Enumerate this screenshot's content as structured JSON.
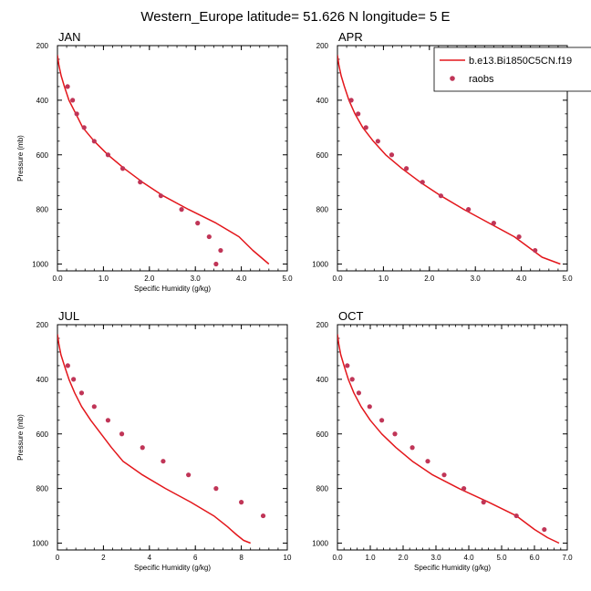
{
  "figure": {
    "title": "Western_Europe  latitude= 51.626 N longitude= 5 E"
  },
  "legend": {
    "location": "top-right",
    "model_label": "b.e13.Bi1850C5CN.f19",
    "obs_label": "raobs"
  },
  "colors": {
    "model_line": "#e3161b",
    "obs_marker": "#c03557",
    "axis": "#000000"
  },
  "chart_data": [
    {
      "type": "line",
      "title": "JAN",
      "xlabel": "Specific Humidity (g/kg)",
      "ylabel": "Pressure (mb)",
      "xlim": [
        0,
        5
      ],
      "ylim": [
        200,
        1025
      ],
      "y_inverted": true,
      "xtick_values": [
        0,
        1,
        2,
        3,
        4,
        5
      ],
      "xtick_labels": [
        "0.0",
        "1.0",
        "2.0",
        "3.0",
        "4.0",
        "5.0"
      ],
      "ytick_values": [
        200,
        400,
        600,
        800,
        1000
      ],
      "ytick_labels": [
        "200",
        "400",
        "600",
        "800",
        "1000"
      ],
      "series": [
        {
          "name": "b.e13.Bi1850C5CN.f19",
          "kind": "line",
          "x": [
            0.0,
            0.03,
            0.08,
            0.15,
            0.25,
            0.4,
            0.55,
            0.8,
            1.1,
            1.45,
            1.85,
            2.3,
            2.85,
            3.45,
            3.95,
            4.25,
            4.6
          ],
          "y": [
            235,
            270,
            310,
            350,
            400,
            450,
            500,
            550,
            600,
            650,
            700,
            750,
            800,
            850,
            900,
            950,
            1000
          ]
        },
        {
          "name": "raobs",
          "kind": "scatter",
          "x": [
            0.22,
            0.33,
            0.42,
            0.58,
            0.8,
            1.1,
            1.42,
            1.8,
            2.25,
            2.7,
            3.05,
            3.3,
            3.55,
            3.45
          ],
          "y": [
            350,
            400,
            450,
            500,
            550,
            600,
            650,
            700,
            750,
            800,
            850,
            900,
            950,
            1000
          ]
        }
      ]
    },
    {
      "type": "line",
      "title": "APR",
      "xlabel": "",
      "ylabel": "",
      "xlim": [
        0,
        5
      ],
      "ylim": [
        200,
        1025
      ],
      "y_inverted": true,
      "xtick_values": [
        0,
        1,
        2,
        3,
        4,
        5
      ],
      "xtick_labels": [
        "0.0",
        "1.0",
        "2.0",
        "3.0",
        "4.0",
        "5.0"
      ],
      "ytick_values": [
        200,
        400,
        600,
        800,
        1000
      ],
      "ytick_labels": [
        "200",
        "400",
        "600",
        "800",
        "1000"
      ],
      "series": [
        {
          "name": "b.e13.Bi1850C5CN.f19",
          "kind": "line",
          "x": [
            0.0,
            0.03,
            0.08,
            0.15,
            0.25,
            0.38,
            0.55,
            0.78,
            1.05,
            1.4,
            1.8,
            2.25,
            2.75,
            3.3,
            3.85,
            4.25,
            4.45,
            4.85
          ],
          "y": [
            235,
            270,
            310,
            350,
            400,
            450,
            500,
            550,
            600,
            650,
            700,
            750,
            800,
            850,
            900,
            950,
            975,
            1000
          ]
        },
        {
          "name": "raobs",
          "kind": "scatter",
          "x": [
            0.3,
            0.45,
            0.62,
            0.88,
            1.18,
            1.5,
            1.85,
            2.25,
            2.85,
            3.4,
            3.95,
            4.3
          ],
          "y": [
            400,
            450,
            500,
            550,
            600,
            650,
            700,
            750,
            800,
            850,
            900,
            950
          ]
        }
      ]
    },
    {
      "type": "line",
      "title": "JUL",
      "xlabel": "Specific Humidity (g/kg)",
      "ylabel": "Pressure (mb)",
      "xlim": [
        0,
        10
      ],
      "ylim": [
        200,
        1025
      ],
      "y_inverted": true,
      "xtick_values": [
        0,
        2,
        4,
        6,
        8,
        10
      ],
      "xtick_labels": [
        "0",
        "2",
        "4",
        "6",
        "8",
        "10"
      ],
      "ytick_values": [
        200,
        400,
        600,
        800,
        1000
      ],
      "ytick_labels": [
        "200",
        "400",
        "600",
        "800",
        "1000"
      ],
      "series": [
        {
          "name": "b.e13.Bi1850C5CN.f19",
          "kind": "line",
          "x": [
            0.0,
            0.06,
            0.15,
            0.3,
            0.5,
            0.75,
            1.05,
            1.45,
            1.9,
            2.35,
            2.85,
            3.7,
            4.7,
            5.8,
            6.8,
            7.4,
            7.8,
            8.1,
            8.4
          ],
          "y": [
            235,
            270,
            310,
            350,
            400,
            450,
            500,
            550,
            600,
            650,
            700,
            750,
            800,
            850,
            900,
            940,
            970,
            990,
            1000
          ]
        },
        {
          "name": "raobs",
          "kind": "scatter",
          "x": [
            0.45,
            0.7,
            1.05,
            1.6,
            2.2,
            2.8,
            3.7,
            4.6,
            5.7,
            6.9,
            8.0,
            8.95
          ],
          "y": [
            350,
            400,
            450,
            500,
            550,
            600,
            650,
            700,
            750,
            800,
            850,
            900
          ]
        }
      ]
    },
    {
      "type": "line",
      "title": "OCT",
      "xlabel": "Specific Humidity (g/kg)",
      "ylabel": "",
      "xlim": [
        0,
        7
      ],
      "ylim": [
        200,
        1025
      ],
      "y_inverted": true,
      "xtick_values": [
        0,
        1,
        2,
        3,
        4,
        5,
        6,
        7
      ],
      "xtick_labels": [
        "0.0",
        "1.0",
        "2.0",
        "3.0",
        "4.0",
        "5.0",
        "6.0",
        "7.0"
      ],
      "ytick_values": [
        200,
        400,
        600,
        800,
        1000
      ],
      "ytick_labels": [
        "200",
        "400",
        "600",
        "800",
        "1000"
      ],
      "series": [
        {
          "name": "b.e13.Bi1850C5CN.f19",
          "kind": "line",
          "x": [
            0.0,
            0.04,
            0.1,
            0.2,
            0.33,
            0.5,
            0.72,
            1.0,
            1.35,
            1.78,
            2.28,
            2.9,
            3.7,
            4.6,
            5.45,
            6.0,
            6.4,
            6.75
          ],
          "y": [
            235,
            270,
            310,
            350,
            400,
            450,
            500,
            550,
            600,
            650,
            700,
            750,
            800,
            850,
            900,
            950,
            980,
            1000
          ]
        },
        {
          "name": "raobs",
          "kind": "scatter",
          "x": [
            0.3,
            0.45,
            0.65,
            0.98,
            1.35,
            1.75,
            2.28,
            2.75,
            3.25,
            3.85,
            4.45,
            5.45,
            6.3
          ],
          "y": [
            350,
            400,
            450,
            500,
            550,
            600,
            650,
            700,
            750,
            800,
            850,
            900,
            950
          ]
        }
      ]
    }
  ]
}
